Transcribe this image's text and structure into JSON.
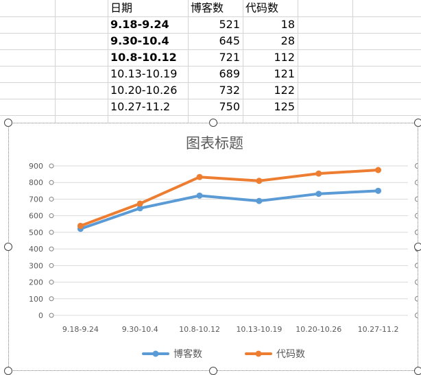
{
  "table": {
    "headers": [
      "日期",
      "博客数",
      "代码数"
    ],
    "rows": [
      {
        "date": "9.18-9.24",
        "blogs": "521",
        "code": "18",
        "bold": true
      },
      {
        "date": "9.30-10.4",
        "blogs": "645",
        "code": "28",
        "bold": true
      },
      {
        "date": "10.8-10.12",
        "blogs": "721",
        "code": "112",
        "bold": true
      },
      {
        "date": "10.13-10.19",
        "blogs": "689",
        "code": "121",
        "bold": false
      },
      {
        "date": "10.20-10.26",
        "blogs": "732",
        "code": "122",
        "bold": false
      },
      {
        "date": "10.27-11.2",
        "blogs": "750",
        "code": "125",
        "bold": false
      }
    ]
  },
  "chart_data": {
    "type": "line",
    "title": "图表标题",
    "categories": [
      "9.18-9.24",
      "9.30-10.4",
      "10.8-10.12",
      "10.13-10.19",
      "10.20-10.26",
      "10.27-11.2"
    ],
    "series": [
      {
        "name": "博客数",
        "values": [
          521,
          645,
          721,
          689,
          732,
          750
        ],
        "color": "#5b9bd5"
      },
      {
        "name": "代码数",
        "values": [
          539,
          673,
          833,
          810,
          854,
          875
        ],
        "color": "#ed7d31"
      }
    ],
    "yticks": [
      0,
      100,
      200,
      300,
      400,
      500,
      600,
      700,
      800,
      900
    ],
    "ylim": [
      0,
      900
    ],
    "grid": true,
    "legend": "bottom",
    "gridColor": "#d9d9d9",
    "textColor": "#595959"
  }
}
